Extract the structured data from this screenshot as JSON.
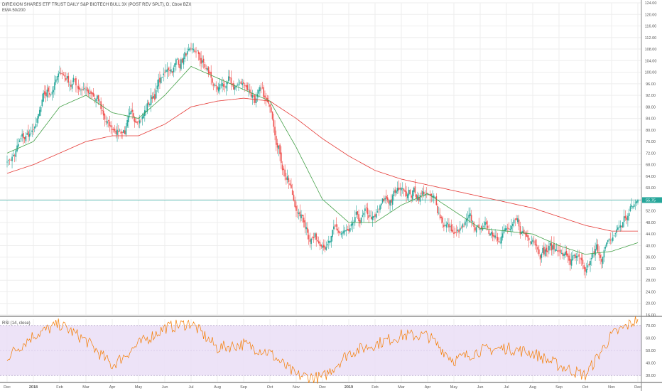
{
  "header": {
    "title": "DIREXION SHARES ETF TRUST DAILY S&P BIOTECH BULL 3X (POST REV SPLT), D, Cboe BZX",
    "overlay_label": "EMA 50/200"
  },
  "rsi_panel": {
    "label": "RSI (14, close)"
  },
  "colors": {
    "up_candle": "#26a69a",
    "down_candle": "#ef5350",
    "ema50": "#43a047",
    "ema200": "#e53935",
    "rsi_line": "#f57c00",
    "rsi_band": "#e8dcf5",
    "price_line": "#26a69a",
    "grid": "#eeeeee",
    "axis": "#888888"
  },
  "chart_data": [
    {
      "type": "candlestick",
      "symbol": "Cboe BZX daily",
      "x_tick_labels": [
        "Dec",
        "2018",
        "Feb",
        "Mar",
        "Apr",
        "May",
        "Jun",
        "Jul",
        "Aug",
        "Sep",
        "Oct",
        "Nov",
        "Dec",
        "2019",
        "Feb",
        "Mar",
        "Apr",
        "May",
        "Jun",
        "Jul",
        "Aug",
        "Sep",
        "Oct",
        "Nov",
        "Dec"
      ],
      "y_tick_labels": [
        "16.00",
        "20.00",
        "24.00",
        "28.00",
        "32.00",
        "36.00",
        "40.00",
        "44.00",
        "48.00",
        "52.00",
        "56.00",
        "60.00",
        "64.00",
        "68.00",
        "72.00",
        "76.00",
        "80.00",
        "84.00",
        "88.00",
        "92.00",
        "96.00",
        "100.00",
        "104.00",
        "108.00",
        "112.00",
        "116.00",
        "120.00",
        "124.00"
      ],
      "ylim": [
        16,
        124
      ],
      "last_price_label": "55.75",
      "last_price": 55.75,
      "close_by_month": [
        {
          "month": "Dec",
          "close": 69
        },
        {
          "month": "2018",
          "close": 80
        },
        {
          "month": "Feb",
          "close": 100
        },
        {
          "month": "Mar",
          "close": 94
        },
        {
          "month": "Apr",
          "close": 80
        },
        {
          "month": "May",
          "close": 83
        },
        {
          "month": "Jun",
          "close": 100
        },
        {
          "month": "Jul",
          "close": 108
        },
        {
          "month": "Aug",
          "close": 94
        },
        {
          "month": "Sep",
          "close": 96
        },
        {
          "month": "Oct",
          "close": 88
        },
        {
          "month": "Nov",
          "close": 52
        },
        {
          "month": "Dec",
          "close": 40
        },
        {
          "month": "2019",
          "close": 45
        },
        {
          "month": "Feb",
          "close": 50
        },
        {
          "month": "Mar",
          "close": 60
        },
        {
          "month": "Apr",
          "close": 58
        },
        {
          "month": "May",
          "close": 44
        },
        {
          "month": "Jun",
          "close": 46
        },
        {
          "month": "Jul",
          "close": 46
        },
        {
          "month": "Aug",
          "close": 42
        },
        {
          "month": "Sep",
          "close": 38
        },
        {
          "month": "Oct",
          "close": 31
        },
        {
          "month": "Nov",
          "close": 42
        },
        {
          "month": "Dec",
          "close": 55.75
        }
      ],
      "ema50_by_month": [
        72,
        76,
        88,
        92,
        86,
        84,
        92,
        102,
        98,
        94,
        90,
        74,
        56,
        48,
        48,
        54,
        58,
        52,
        46,
        45,
        44,
        40,
        37,
        38,
        41
      ],
      "ema200_by_month": [
        65,
        68,
        72,
        76,
        78,
        78,
        82,
        88,
        90,
        91,
        90,
        84,
        77,
        71,
        66,
        63,
        61,
        59,
        57,
        55,
        53,
        50,
        47,
        45,
        45
      ]
    },
    {
      "type": "line",
      "name": "RSI (14, close)",
      "y_tick_labels": [
        "30.00",
        "40.00",
        "50.00",
        "60.00",
        "70.00"
      ],
      "ylim": [
        25,
        75
      ],
      "band": [
        30,
        70
      ],
      "rsi_by_month": [
        45,
        62,
        71,
        58,
        38,
        55,
        68,
        72,
        52,
        55,
        48,
        30,
        28,
        48,
        55,
        62,
        62,
        42,
        50,
        52,
        48,
        38,
        30,
        62,
        75
      ]
    }
  ]
}
